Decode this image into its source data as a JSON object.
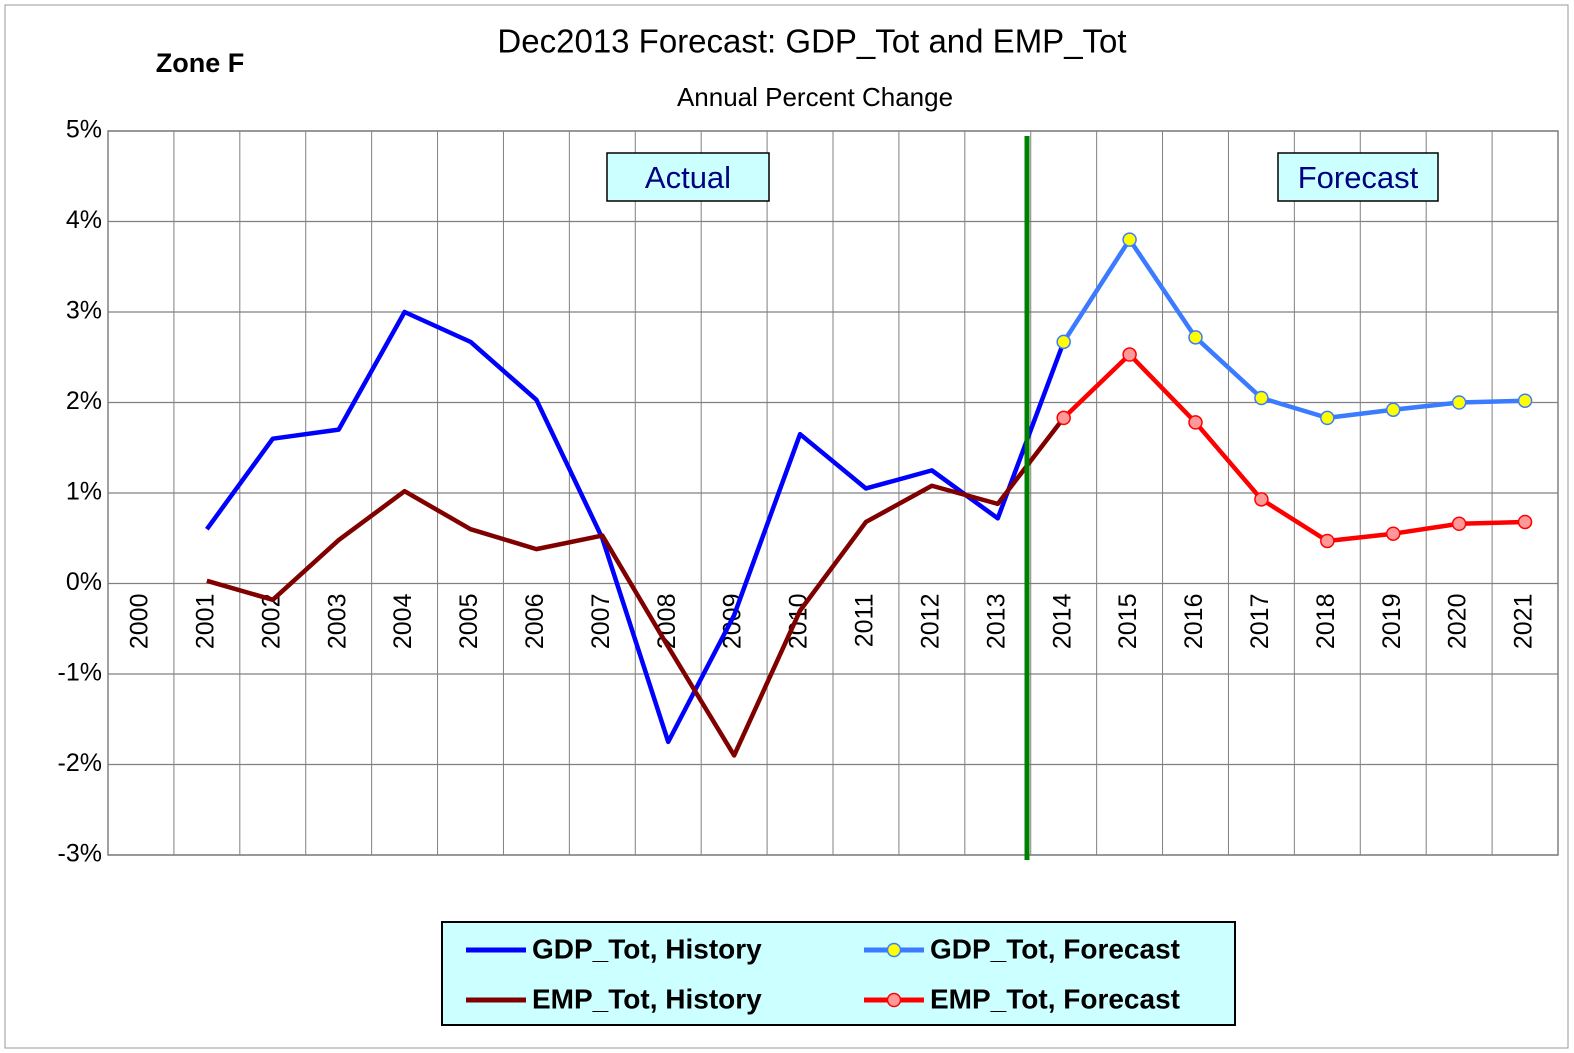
{
  "chart_data": {
    "type": "line",
    "title": "Dec2013 Forecast: GDP_Tot  and  EMP_Tot",
    "subtitle": "Annual Percent Change",
    "annotations": [
      "Zone F",
      "Actual",
      "Forecast"
    ],
    "categories": [
      "2000",
      "2001",
      "2002",
      "2003",
      "2004",
      "2005",
      "2006",
      "2007",
      "2008",
      "2009",
      "2010",
      "2011",
      "2012",
      "2013",
      "2014",
      "2015",
      "2016",
      "2017",
      "2018",
      "2019",
      "2020",
      "2021"
    ],
    "series": [
      {
        "name": "GDP_Tot, History",
        "color": "#0000ff",
        "marker": false,
        "values": [
          null,
          0.6,
          1.6,
          1.7,
          3.0,
          2.67,
          2.03,
          0.5,
          -1.75,
          -0.35,
          1.65,
          1.05,
          1.25,
          0.72,
          2.67,
          null,
          null,
          null,
          null,
          null,
          null,
          null
        ]
      },
      {
        "name": "GDP_Tot, Forecast",
        "color": "#3b7bff",
        "marker": true,
        "marker_color": "#ffff00",
        "values": [
          null,
          null,
          null,
          null,
          null,
          null,
          null,
          null,
          null,
          null,
          null,
          null,
          null,
          null,
          2.67,
          3.8,
          2.72,
          2.05,
          1.83,
          1.92,
          2.0,
          2.02
        ]
      },
      {
        "name": "EMP_Tot, History",
        "color": "#800000",
        "marker": false,
        "values": [
          null,
          0.03,
          -0.18,
          0.48,
          1.02,
          0.6,
          0.38,
          0.53,
          -0.7,
          -1.9,
          -0.3,
          0.68,
          1.08,
          0.88,
          1.83,
          null,
          null,
          null,
          null,
          null,
          null,
          null
        ]
      },
      {
        "name": "EMP_Tot, Forecast",
        "color": "#ff0000",
        "marker": true,
        "marker_color": "#ff9999",
        "values": [
          null,
          null,
          null,
          null,
          null,
          null,
          null,
          null,
          null,
          null,
          null,
          null,
          null,
          null,
          1.83,
          2.53,
          1.78,
          0.93,
          0.47,
          0.55,
          0.66,
          0.68
        ]
      }
    ],
    "ylim": [
      -3,
      5
    ],
    "yticks": [
      {
        "value": -3,
        "label": "-3%"
      },
      {
        "value": -2,
        "label": "-2%"
      },
      {
        "value": -1,
        "label": "-1%"
      },
      {
        "value": 0,
        "label": "0%"
      },
      {
        "value": 1,
        "label": "1%"
      },
      {
        "value": 2,
        "label": "2%"
      },
      {
        "value": 3,
        "label": "3%"
      },
      {
        "value": 4,
        "label": "4%"
      },
      {
        "value": 5,
        "label": "5%"
      }
    ],
    "grid": true
  }
}
